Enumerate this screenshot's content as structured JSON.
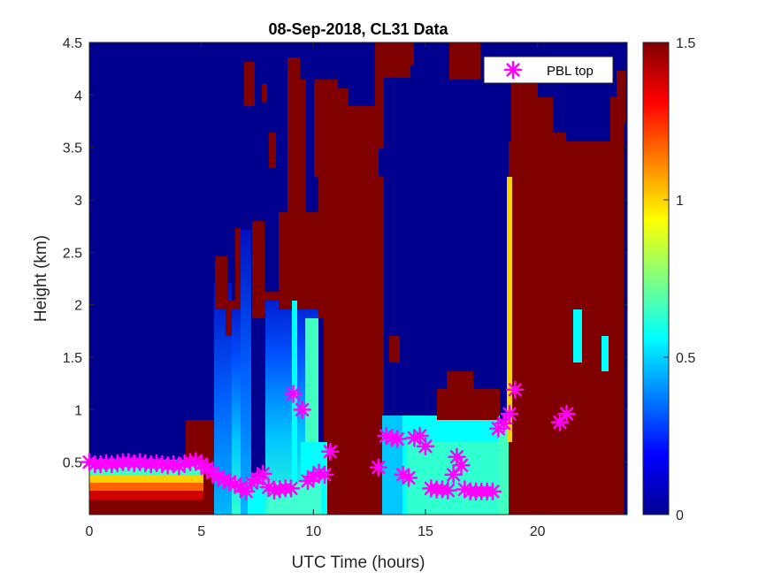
{
  "chart_data": {
    "type": "heatmap",
    "title": "08-Sep-2018, CL31 Data",
    "xlabel": "UTC Time (hours)",
    "ylabel": "Height (km)",
    "xlim": [
      0,
      24
    ],
    "ylim": [
      0,
      4.5
    ],
    "xticks": [
      0,
      5,
      10,
      15,
      20
    ],
    "yticks": [
      0.5,
      1,
      1.5,
      2,
      2.5,
      3,
      3.5,
      4,
      4.5
    ],
    "colorbar": {
      "range": [
        0,
        1.5
      ],
      "ticks": [
        0,
        0.5,
        1,
        1.5
      ],
      "colormap": "jet"
    },
    "legend": {
      "location": "top-right",
      "entries": [
        "PBL top"
      ]
    },
    "series": [
      {
        "name": "PBL top",
        "marker": "asterisk",
        "color": "#ff00ff",
        "x": [
          0,
          0.25,
          0.5,
          0.75,
          1,
          1.25,
          1.5,
          1.75,
          2,
          2.25,
          2.5,
          2.75,
          3,
          3.25,
          3.5,
          3.75,
          4,
          4.25,
          4.5,
          4.75,
          5,
          5.25,
          5.5,
          5.75,
          6,
          6.25,
          6.5,
          6.75,
          7,
          7.25,
          7.5,
          7.75,
          8,
          8.25,
          8.5,
          8.75,
          9,
          9.1,
          9.5,
          9.75,
          10,
          10.25,
          10.5,
          10.75,
          12.9,
          13.25,
          13.5,
          13.75,
          14,
          14.25,
          14.5,
          14.75,
          15,
          15.25,
          15.5,
          15.75,
          16,
          16.25,
          16.4,
          16.6,
          16.75,
          17,
          17.25,
          17.5,
          17.75,
          18,
          18.25,
          18.5,
          18.75,
          19,
          21.0,
          21.3
        ],
        "y": [
          0.5,
          0.48,
          0.48,
          0.49,
          0.48,
          0.49,
          0.5,
          0.5,
          0.49,
          0.5,
          0.49,
          0.48,
          0.49,
          0.48,
          0.47,
          0.48,
          0.46,
          0.49,
          0.5,
          0.51,
          0.48,
          0.44,
          0.4,
          0.36,
          0.33,
          0.31,
          0.29,
          0.26,
          0.22,
          0.3,
          0.34,
          0.39,
          0.26,
          0.23,
          0.24,
          0.25,
          0.25,
          1.15,
          1.0,
          0.32,
          0.36,
          0.4,
          0.38,
          0.6,
          0.45,
          0.75,
          0.73,
          0.72,
          0.38,
          0.35,
          0.73,
          0.75,
          0.65,
          0.25,
          0.24,
          0.24,
          0.23,
          0.38,
          0.55,
          0.47,
          0.24,
          0.22,
          0.22,
          0.22,
          0.22,
          0.22,
          0.82,
          0.87,
          0.96,
          1.19,
          0.88,
          0.96
        ]
      }
    ]
  }
}
